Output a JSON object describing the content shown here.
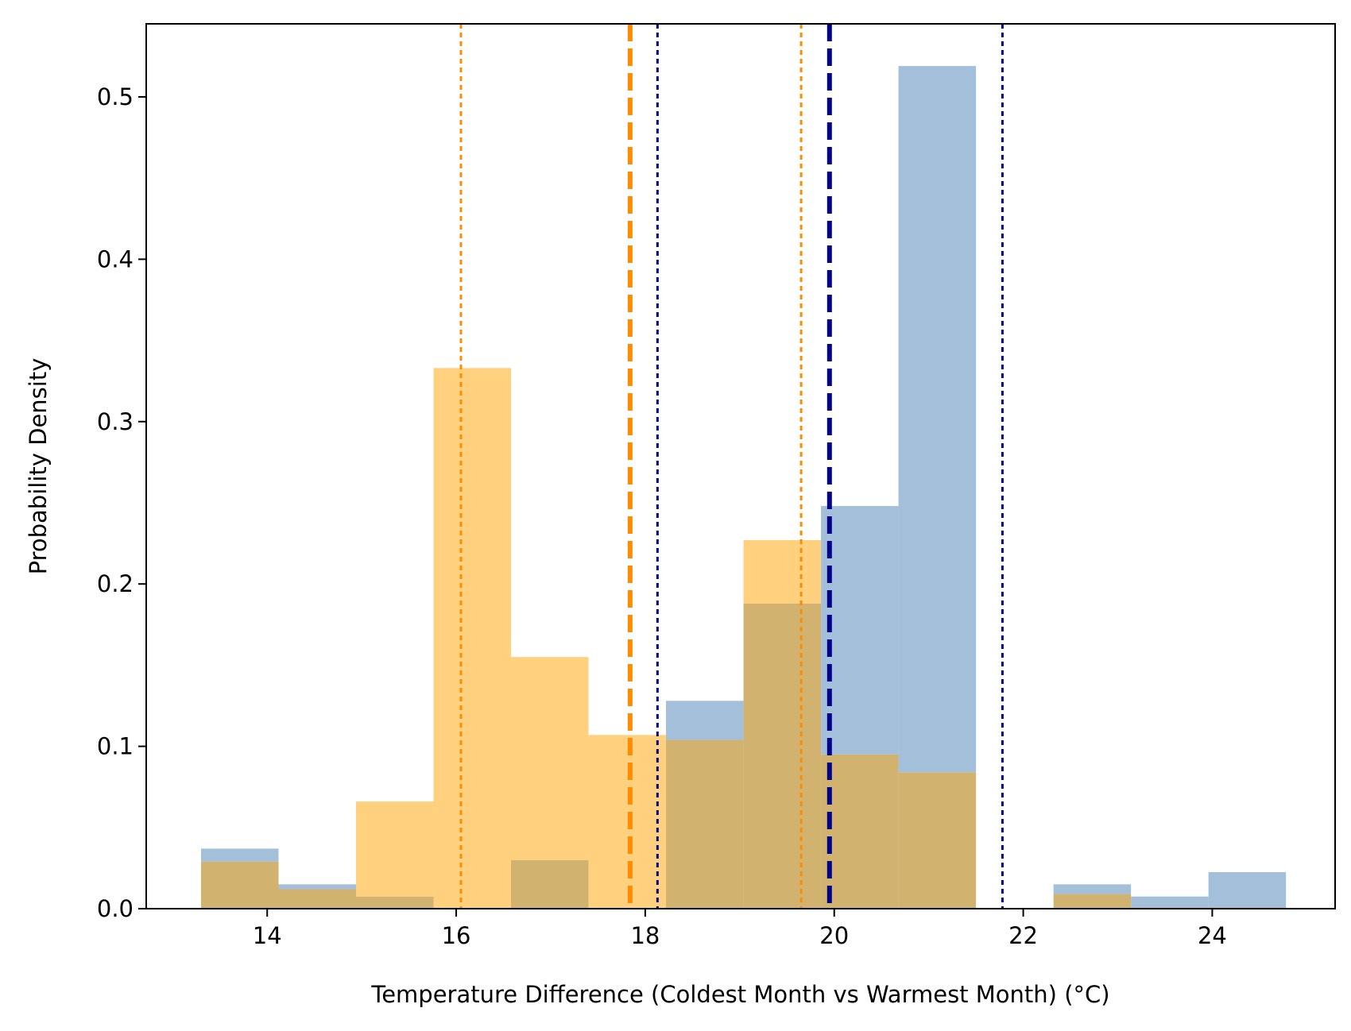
{
  "chart_data": {
    "type": "histogram",
    "xlabel": "Temperature Difference (Coldest Month vs Warmest Month) (°C)",
    "ylabel": "Probability Density",
    "xlim": [
      12.72,
      25.3
    ],
    "ylim": [
      0,
      0.545
    ],
    "x_ticks": [
      14,
      16,
      18,
      20,
      22,
      24
    ],
    "y_ticks": [
      0.0,
      0.1,
      0.2,
      0.3,
      0.4,
      0.5
    ],
    "x_tick_labels": [
      "14",
      "16",
      "18",
      "20",
      "22",
      "24"
    ],
    "y_tick_labels": [
      "0.0",
      "0.1",
      "0.2",
      "0.3",
      "0.4",
      "0.5"
    ],
    "grid": false,
    "legend": "none",
    "series": [
      {
        "color": "#a3bfd9",
        "bins": [
          {
            "x0": 13.3,
            "x1": 14.12,
            "density": 0.037
          },
          {
            "x0": 14.12,
            "x1": 14.94,
            "density": 0.015
          },
          {
            "x0": 14.94,
            "x1": 15.76,
            "density": 0.0075
          },
          {
            "x0": 15.76,
            "x1": 16.58,
            "density": 0.0
          },
          {
            "x0": 16.58,
            "x1": 17.4,
            "density": 0.03
          },
          {
            "x0": 17.4,
            "x1": 18.22,
            "density": 0.0
          },
          {
            "x0": 18.22,
            "x1": 19.04,
            "density": 0.128
          },
          {
            "x0": 19.04,
            "x1": 19.86,
            "density": 0.188
          },
          {
            "x0": 19.86,
            "x1": 20.68,
            "density": 0.248
          },
          {
            "x0": 20.68,
            "x1": 21.5,
            "density": 0.519
          },
          {
            "x0": 21.5,
            "x1": 22.32,
            "density": 0.0
          },
          {
            "x0": 22.32,
            "x1": 23.14,
            "density": 0.015
          },
          {
            "x0": 23.14,
            "x1": 23.96,
            "density": 0.0075
          },
          {
            "x0": 23.96,
            "x1": 24.78,
            "density": 0.0225
          }
        ]
      },
      {
        "color": "#ffd17f",
        "bins": [
          {
            "x0": 13.3,
            "x1": 14.12,
            "density": 0.029
          },
          {
            "x0": 14.12,
            "x1": 14.94,
            "density": 0.012
          },
          {
            "x0": 14.94,
            "x1": 15.76,
            "density": 0.066
          },
          {
            "x0": 15.76,
            "x1": 16.58,
            "density": 0.333
          },
          {
            "x0": 16.58,
            "x1": 17.4,
            "density": 0.155
          },
          {
            "x0": 17.4,
            "x1": 18.22,
            "density": 0.107
          },
          {
            "x0": 18.22,
            "x1": 19.04,
            "density": 0.104
          },
          {
            "x0": 19.04,
            "x1": 19.86,
            "density": 0.227
          },
          {
            "x0": 19.86,
            "x1": 20.68,
            "density": 0.095
          },
          {
            "x0": 20.68,
            "x1": 21.5,
            "density": 0.084
          },
          {
            "x0": 21.5,
            "x1": 22.32,
            "density": 0.0
          },
          {
            "x0": 22.32,
            "x1": 23.14,
            "density": 0.009
          },
          {
            "x0": 23.14,
            "x1": 23.96,
            "density": 0.0
          },
          {
            "x0": 23.96,
            "x1": 24.78,
            "density": 0.0
          }
        ]
      }
    ],
    "overlap_color": "#d1b36f",
    "reference_lines": [
      {
        "x": 16.05,
        "color": "#ff8c00",
        "style": "dotted"
      },
      {
        "x": 17.84,
        "color": "#ff8c00",
        "style": "dashed"
      },
      {
        "x": 19.65,
        "color": "#ff8c00",
        "style": "dotted"
      },
      {
        "x": 18.13,
        "color": "#00008b",
        "style": "dotted"
      },
      {
        "x": 19.95,
        "color": "#00008b",
        "style": "dashed"
      },
      {
        "x": 21.78,
        "color": "#00008b",
        "style": "dotted"
      }
    ]
  }
}
